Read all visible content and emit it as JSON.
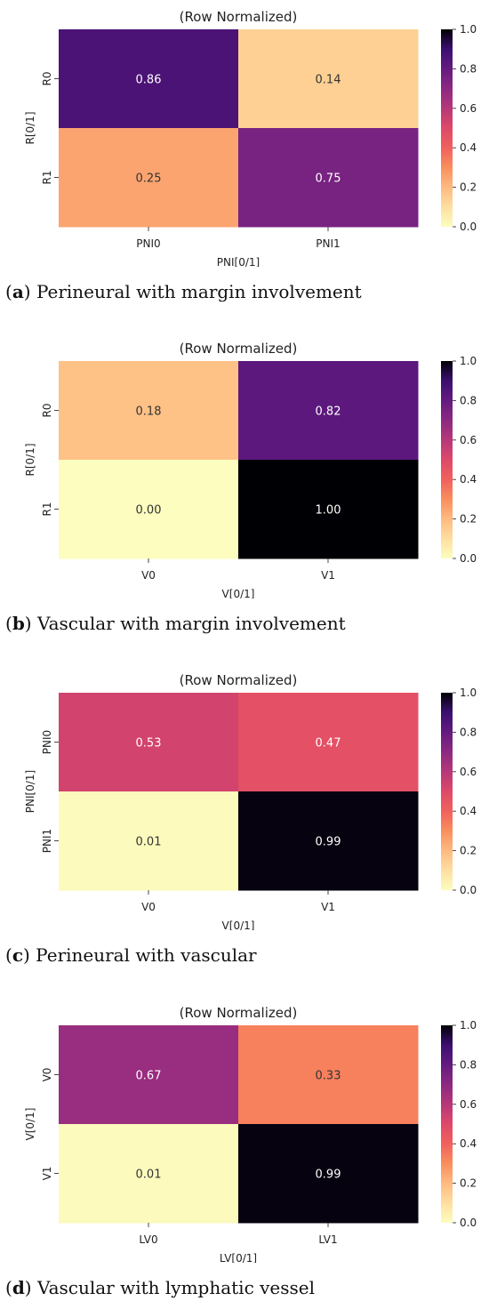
{
  "colormap": "magma_r",
  "chart_data": [
    {
      "type": "heatmap",
      "title": "(Row Normalized)",
      "xlabel": "PNI[0/1]",
      "ylabel": "R[0/1]",
      "x_categories": [
        "PNI0",
        "PNI1"
      ],
      "y_categories": [
        "R0",
        "R1"
      ],
      "values": [
        [
          0.86,
          0.14
        ],
        [
          0.25,
          0.75
        ]
      ],
      "value_labels": [
        [
          "0.86",
          "0.14"
        ],
        [
          "0.25",
          "0.75"
        ]
      ],
      "colorbar": {
        "range": [
          0,
          1
        ],
        "ticks": [
          "0.0",
          "0.2",
          "0.4",
          "0.6",
          "0.8",
          "1.0"
        ]
      },
      "caption": {
        "letter": "a",
        "text": "Perineural with margin involvement"
      }
    },
    {
      "type": "heatmap",
      "title": "(Row Normalized)",
      "xlabel": "V[0/1]",
      "ylabel": "R[0/1]",
      "x_categories": [
        "V0",
        "V1"
      ],
      "y_categories": [
        "R0",
        "R1"
      ],
      "values": [
        [
          0.18,
          0.82
        ],
        [
          0.0,
          1.0
        ]
      ],
      "value_labels": [
        [
          "0.18",
          "0.82"
        ],
        [
          "0.00",
          "1.00"
        ]
      ],
      "colorbar": {
        "range": [
          0,
          1
        ],
        "ticks": [
          "0.0",
          "0.2",
          "0.4",
          "0.6",
          "0.8",
          "1.0"
        ]
      },
      "caption": {
        "letter": "b",
        "text": "Vascular with margin involvement"
      }
    },
    {
      "type": "heatmap",
      "title": "(Row Normalized)",
      "xlabel": "V[0/1]",
      "ylabel": "PNI[0/1]",
      "x_categories": [
        "V0",
        "V1"
      ],
      "y_categories": [
        "PNI0",
        "PNI1"
      ],
      "values": [
        [
          0.53,
          0.47
        ],
        [
          0.01,
          0.99
        ]
      ],
      "value_labels": [
        [
          "0.53",
          "0.47"
        ],
        [
          "0.01",
          "0.99"
        ]
      ],
      "colorbar": {
        "range": [
          0,
          1
        ],
        "ticks": [
          "0.0",
          "0.2",
          "0.4",
          "0.6",
          "0.8",
          "1.0"
        ]
      },
      "caption": {
        "letter": "c",
        "text": "Perineural with vascular"
      }
    },
    {
      "type": "heatmap",
      "title": "(Row Normalized)",
      "xlabel": "LV[0/1]",
      "ylabel": "V[0/1]",
      "x_categories": [
        "LV0",
        "LV1"
      ],
      "y_categories": [
        "V0",
        "V1"
      ],
      "values": [
        [
          0.67,
          0.33
        ],
        [
          0.01,
          0.99
        ]
      ],
      "value_labels": [
        [
          "0.67",
          "0.33"
        ],
        [
          "0.01",
          "0.99"
        ]
      ],
      "colorbar": {
        "range": [
          0,
          1
        ],
        "ticks": [
          "0.0",
          "0.2",
          "0.4",
          "0.6",
          "0.8",
          "1.0"
        ]
      },
      "caption": {
        "letter": "d",
        "text": "Vascular with lymphatic vessel"
      }
    }
  ]
}
